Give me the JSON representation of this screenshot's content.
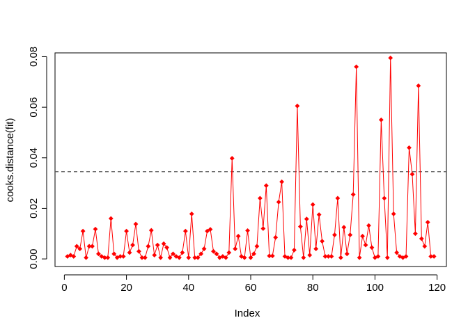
{
  "chart_data": {
    "type": "line",
    "title": "",
    "xlabel": "Index",
    "ylabel": "cooks.distance(fit)",
    "xlim": [
      -3,
      123
    ],
    "ylim": [
      -0.003,
      0.0815
    ],
    "x_ticks": [
      0,
      20,
      40,
      60,
      80,
      100,
      120
    ],
    "y_ticks": [
      0.0,
      0.02,
      0.04,
      0.06,
      0.08
    ],
    "x_tick_labels": [
      "0",
      "20",
      "40",
      "60",
      "80",
      "100",
      "120"
    ],
    "y_tick_labels": [
      "0.00",
      "0.02",
      "0.04",
      "0.06",
      "0.08"
    ],
    "threshold": 0.0345,
    "colors": {
      "series": "#ff0000",
      "threshold": "#555555",
      "axis": "#000000"
    },
    "series": [
      {
        "x": [
          1,
          2,
          3,
          4,
          5,
          6,
          7,
          8,
          9,
          10,
          11,
          12,
          13,
          14,
          15,
          16,
          17,
          18,
          19,
          20,
          21,
          22,
          23,
          24,
          25,
          26,
          27,
          28,
          29,
          30,
          31,
          32,
          33,
          34,
          35,
          36,
          37,
          38,
          39,
          40,
          41,
          42,
          43,
          44,
          45,
          46,
          47,
          48,
          49,
          50,
          51,
          52,
          53,
          54,
          55,
          56,
          57,
          58,
          59,
          60,
          61,
          62,
          63,
          64,
          65,
          66,
          67,
          68,
          69,
          70,
          71,
          72,
          73,
          74,
          75,
          76,
          77,
          78,
          79,
          80,
          81,
          82,
          83,
          84,
          85,
          86,
          87,
          88,
          89,
          90,
          91,
          92,
          93,
          94,
          95,
          96,
          97,
          98,
          99,
          100,
          101,
          102,
          103,
          104,
          105,
          106,
          107,
          108,
          109,
          110,
          111,
          112,
          113,
          114,
          115,
          116,
          117,
          118,
          119
        ],
        "values": [
          0.001,
          0.0015,
          0.001,
          0.005,
          0.004,
          0.011,
          0.0005,
          0.005,
          0.005,
          0.0118,
          0.002,
          0.001,
          0.0005,
          0.0005,
          0.016,
          0.002,
          0.0005,
          0.001,
          0.001,
          0.011,
          0.0025,
          0.0055,
          0.0138,
          0.003,
          0.0005,
          0.0005,
          0.005,
          0.0113,
          0.0015,
          0.0055,
          0.0005,
          0.006,
          0.0045,
          0.0005,
          0.002,
          0.001,
          0.0005,
          0.0025,
          0.011,
          0.0005,
          0.0178,
          0.0005,
          0.0005,
          0.002,
          0.004,
          0.011,
          0.0117,
          0.003,
          0.002,
          0.0005,
          0.001,
          0.0005,
          0.0025,
          0.0398,
          0.004,
          0.009,
          0.001,
          0.0005,
          0.0112,
          0.0005,
          0.002,
          0.005,
          0.024,
          0.012,
          0.029,
          0.0012,
          0.0012,
          0.0085,
          0.0225,
          0.0305,
          0.001,
          0.0005,
          0.0005,
          0.0035,
          0.0605,
          0.0128,
          0.0005,
          0.0158,
          0.0015,
          0.0215,
          0.004,
          0.0175,
          0.007,
          0.001,
          0.001,
          0.001,
          0.0095,
          0.024,
          0.0005,
          0.0125,
          0.002,
          0.0095,
          0.0255,
          0.076,
          0.0005,
          0.009,
          0.0055,
          0.0132,
          0.0045,
          0.0005,
          0.001,
          0.055,
          0.024,
          0.0005,
          0.0795,
          0.0178,
          0.0025,
          0.001,
          0.0005,
          0.001,
          0.044,
          0.0335,
          0.01,
          0.0685,
          0.008,
          0.005,
          0.0145,
          0.001,
          0.001
        ]
      }
    ]
  }
}
